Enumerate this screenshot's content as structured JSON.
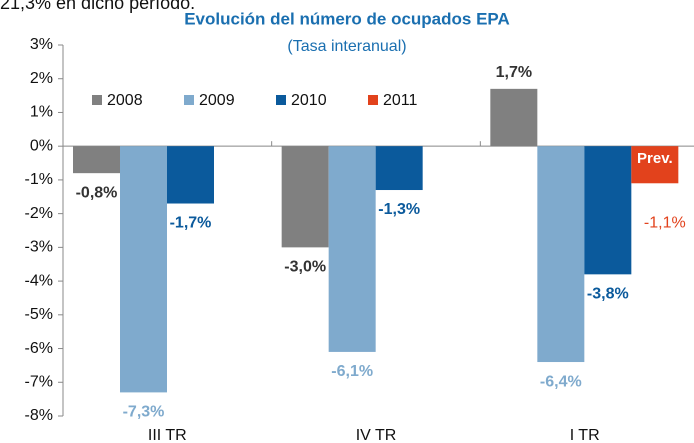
{
  "chart_data": {
    "type": "bar",
    "header_text": "21,3% en dicho período.",
    "title": "Evolución del número de ocupados EPA",
    "subtitle": "(Tasa interanual)",
    "annotation": "Prev.",
    "categories": [
      "III TR",
      "IV TR",
      "I TR"
    ],
    "series": [
      {
        "name": "2008",
        "color": "#808080",
        "label_color": "#333333",
        "values": [
          -0.8,
          -3.0,
          1.7
        ],
        "value_labels": [
          "-0,8%",
          "-3,0%",
          "1,7%"
        ]
      },
      {
        "name": "2009",
        "color": "#7faacd",
        "label_color": "#7faacd",
        "values": [
          -7.3,
          -6.1,
          -6.4
        ],
        "value_labels": [
          "-7,3%",
          "-6,1%",
          "-6,4%"
        ]
      },
      {
        "name": "2010",
        "color": "#0b5a9c",
        "label_color": "#0b5a9c",
        "values": [
          -1.7,
          -1.3,
          -3.8
        ],
        "value_labels": [
          "-1,7%",
          "-1,3%",
          "-3,8%"
        ]
      },
      {
        "name": "2011",
        "color": "#e2421c",
        "label_color": "#e2421c",
        "values": [
          null,
          null,
          -1.1
        ],
        "value_labels": [
          null,
          null,
          "-1,1%"
        ]
      }
    ],
    "ylim": [
      -8,
      3
    ],
    "yticks": [
      {
        "value": 3,
        "label": "3%"
      },
      {
        "value": 2,
        "label": "2%"
      },
      {
        "value": 1,
        "label": "1%"
      },
      {
        "value": 0,
        "label": "0%"
      },
      {
        "value": -1,
        "label": "-1%"
      },
      {
        "value": -2,
        "label": "-2%"
      },
      {
        "value": -3,
        "label": "-3%"
      },
      {
        "value": -4,
        "label": "-4%"
      },
      {
        "value": -5,
        "label": "-5%"
      },
      {
        "value": -6,
        "label": "-6%"
      },
      {
        "value": -7,
        "label": "-7%"
      },
      {
        "value": -8,
        "label": "-8%"
      }
    ],
    "legend": "top-left"
  }
}
